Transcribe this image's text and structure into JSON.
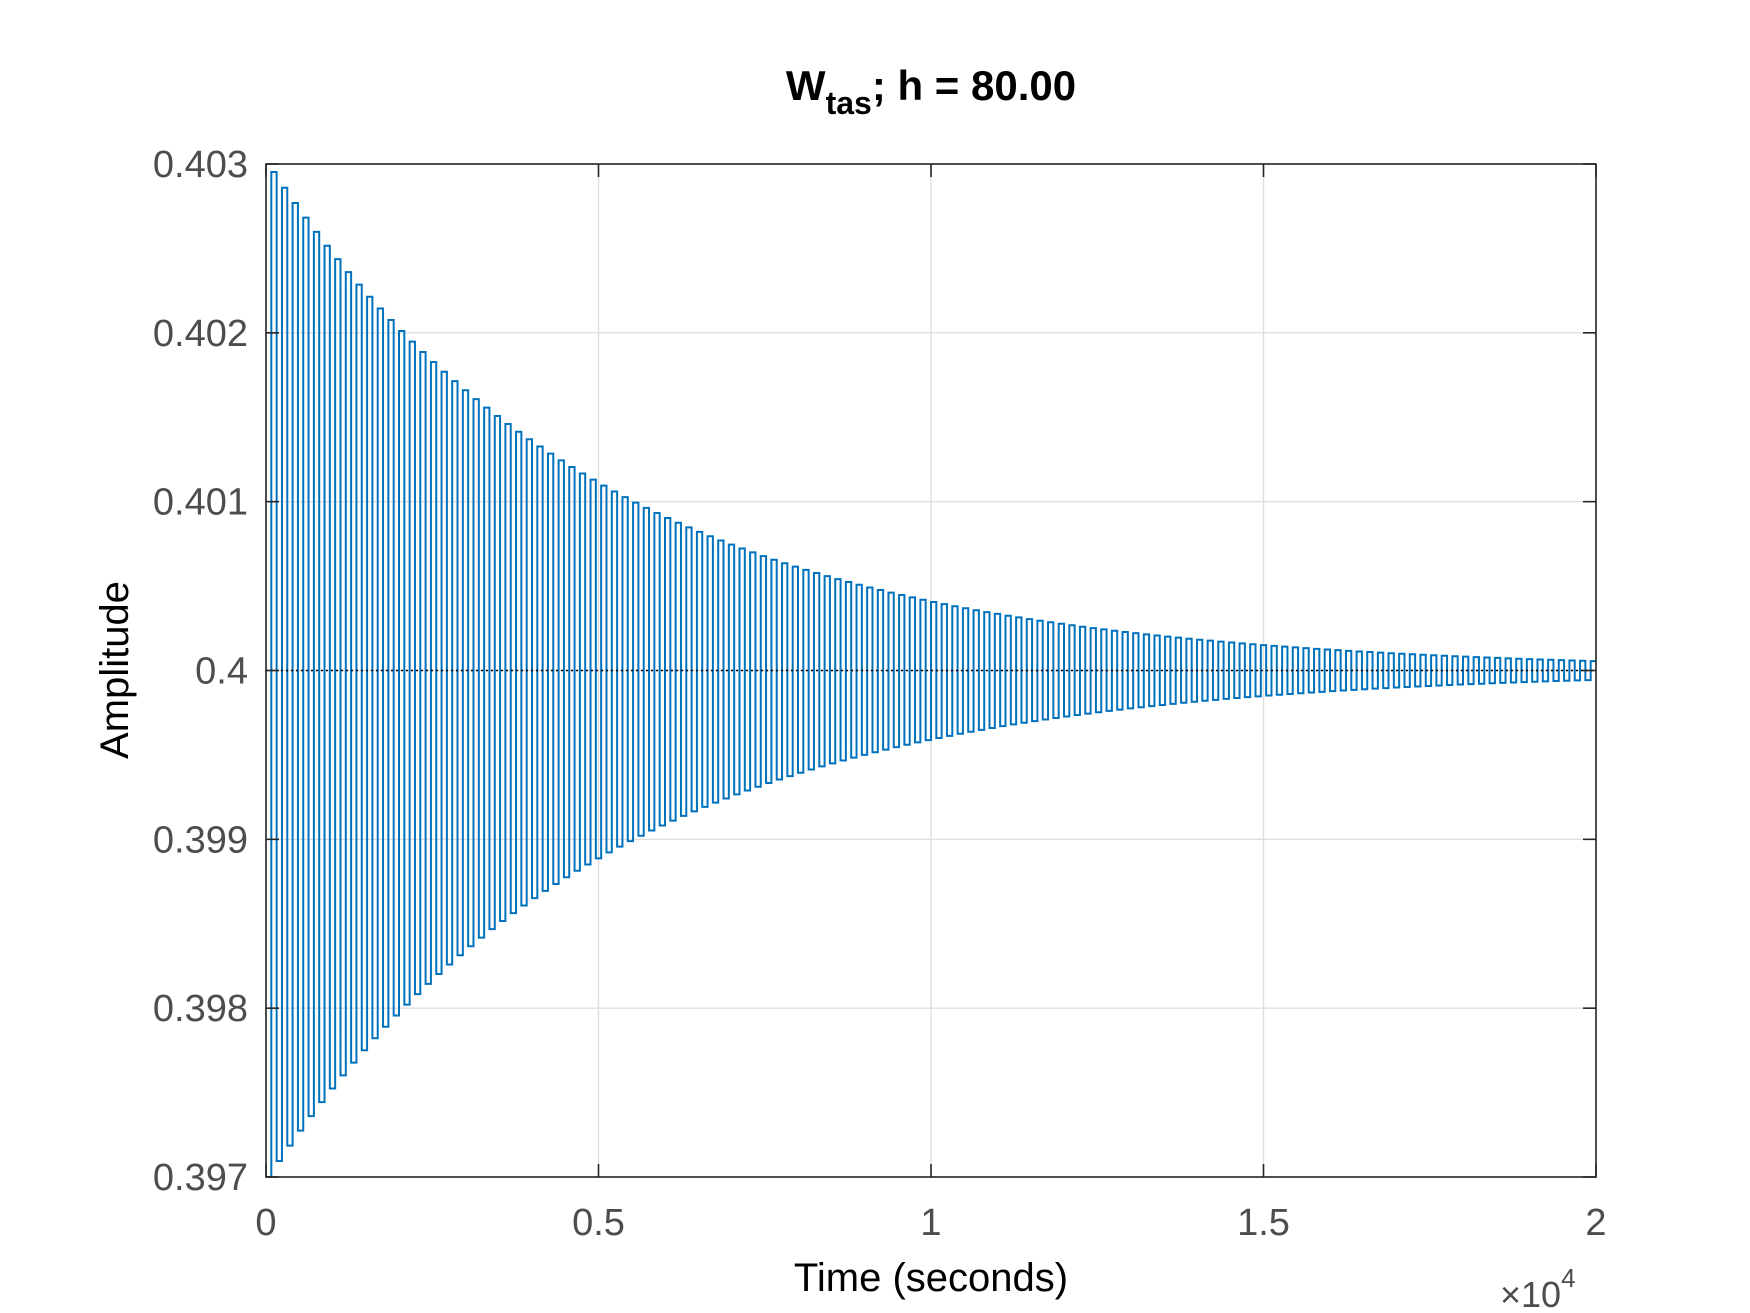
{
  "chart_data": {
    "type": "line",
    "title": {
      "main": "W",
      "subscript": "tas",
      "rest": "; h = 80.00"
    },
    "xlabel": "Time (seconds)",
    "ylabel": "Amplitude",
    "xlim": [
      0,
      20000
    ],
    "ylim": [
      0.397,
      0.403
    ],
    "x_ticks": [
      0,
      5000,
      10000,
      15000,
      20000
    ],
    "x_tick_labels": [
      "0",
      "0.5",
      "1",
      "1.5",
      "2"
    ],
    "x_exponent": {
      "base": "×10",
      "power": "4"
    },
    "y_ticks": [
      0.397,
      0.398,
      0.399,
      0.4,
      0.401,
      0.402,
      0.403
    ],
    "y_tick_labels": [
      "0.397",
      "0.398",
      "0.399",
      "0.4",
      "0.401",
      "0.402",
      "0.403"
    ],
    "grid": true,
    "series": [
      {
        "style": "stairs",
        "color": "#0072bd",
        "sample_time": 80,
        "steady_state": 0.4,
        "initial_deviation": 0.003,
        "decay_time_constant": 5000,
        "end_time": 20000
      }
    ],
    "reference_line": {
      "y": 0.4,
      "style": "dotted",
      "color": "#000000"
    }
  }
}
